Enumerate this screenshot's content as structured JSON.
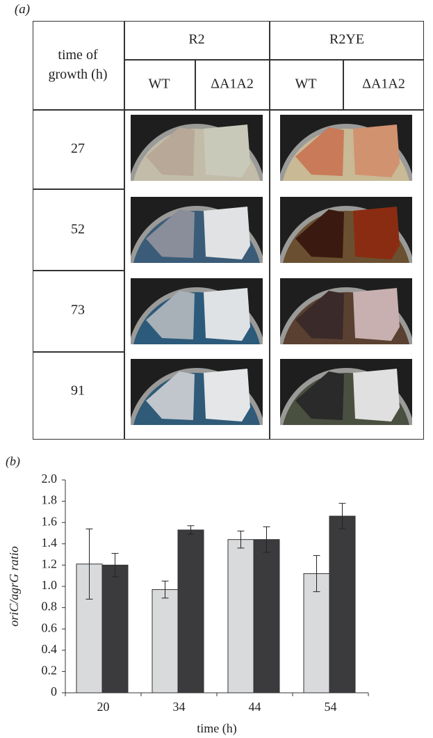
{
  "panel_a": {
    "label": "(a)",
    "corner_header": "time of growth (h)",
    "media": [
      "R2",
      "R2YE"
    ],
    "strains": [
      "WT",
      "ΔA1A2",
      "WT",
      "ΔA1A2"
    ],
    "times": [
      27,
      52,
      73,
      91
    ]
  },
  "chart_data": {
    "type": "bar",
    "label": "(b)",
    "xlabel": "time (h)",
    "ylabel": "oriC/agrG ratio",
    "categories": [
      "20",
      "34",
      "44",
      "54"
    ],
    "series": [
      {
        "color": "#d9dadc",
        "values": [
          1.21,
          0.97,
          1.44,
          1.12
        ],
        "errors": [
          0.33,
          0.08,
          0.08,
          0.17
        ]
      },
      {
        "color": "#3b3b3d",
        "values": [
          1.2,
          1.53,
          1.44,
          1.66
        ],
        "errors": [
          0.11,
          0.04,
          0.12,
          0.12
        ]
      }
    ],
    "ylim": [
      0,
      2
    ],
    "yticks": [
      0,
      0.2,
      0.4,
      0.6,
      0.8,
      {
        "value": 1,
        "label": "1.0"
      },
      1.2,
      1.4,
      1.6,
      1.8,
      {
        "value": 2,
        "label": "2.0"
      }
    ]
  }
}
